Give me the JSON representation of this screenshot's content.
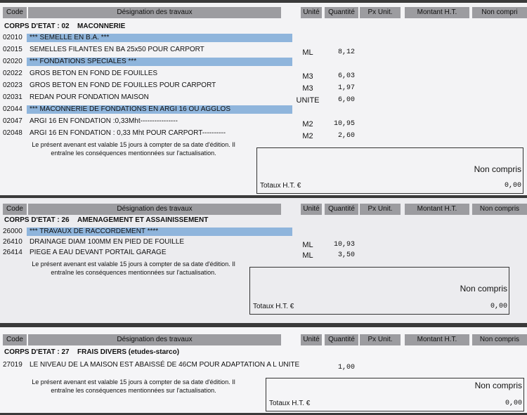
{
  "sections": [
    {
      "headers": [
        "Code",
        "Désignation des travaux",
        "Unité",
        "Quantité",
        "Px Unit.",
        "Montant H.T.",
        "Non compri"
      ],
      "corps_label": "CORPS D'ETAT : 02",
      "corps_title": "MACONNERIE",
      "rows": [
        {
          "code": "02010",
          "designation": "*** SEMELLE EN B.A. ***",
          "highlight": true
        },
        {
          "code": "02015",
          "designation": "SEMELLES FILANTES EN BA 25x50 POUR CARPORT",
          "unit": "ML",
          "qty": "8,12"
        },
        {
          "code": "02020",
          "designation": "*** FONDATIONS SPECIALES ***",
          "highlight": true
        },
        {
          "code": "02022",
          "designation": "GROS BETON EN FOND DE FOUILLES",
          "unit": "M3",
          "qty": "6,03"
        },
        {
          "code": "02023",
          "designation": "GROS BETON EN FOND DE FOUILLES POUR CARPORT",
          "unit": "M3",
          "qty": "1,97"
        },
        {
          "code": "02031",
          "designation": "REDAN POUR FONDATION MAISON",
          "unit": "UNITE",
          "qty": "6,00"
        },
        {
          "code": "02044",
          "designation": "*** MACONNERIE DE FONDATIONS EN ARGI 16 OU AGGLOS",
          "highlight": true
        },
        {
          "code": "02047",
          "designation": "ARGI 16 EN FONDATION :0,33Mht----------------",
          "unit": "M2",
          "qty": "10,95"
        },
        {
          "code": "02048",
          "designation": "ARGI 16 EN FONDATION : 0,33 Mht POUR CARPORT----------",
          "unit": "M2",
          "qty": "2,60"
        }
      ],
      "note": [
        "Le présent avenant est valable 15 jours à compter de sa date d'édition. Il",
        "entraîne les conséquences mentionnées sur l'actualisation."
      ],
      "totals_label": "Totaux H.T. €",
      "non_compris": "Non compris",
      "total": "0,00"
    },
    {
      "headers": [
        "Code",
        "Désignation des travaux",
        "Unité",
        "Quantité",
        "Px Unit.",
        "Montant H.T.",
        "Non compris"
      ],
      "corps_label": "CORPS D'ETAT : 26",
      "corps_title": "AMENAGEMENT ET ASSAINISSEMENT",
      "rows": [
        {
          "code": "26000",
          "designation": "*** TRAVAUX DE RACCORDEMENT ****",
          "highlight": true
        },
        {
          "code": "26410",
          "designation": "DRAINAGE DIAM 100MM EN PIED DE FOUILLE",
          "unit": "ML",
          "qty": "10,93"
        },
        {
          "code": "26414",
          "designation": "PIEGE A EAU DEVANT PORTAIL GARAGE",
          "unit": "ML",
          "qty": "3,50"
        }
      ],
      "note": [
        "Le présent avenant est valable 15 jours à compter de sa date d'édition. Il",
        "entraîne les conséquences mentionnées sur l'actualisation."
      ],
      "totals_label": "Totaux H.T. €",
      "non_compris": "Non compris",
      "total": "0,00"
    },
    {
      "headers": [
        "Code",
        "Désignation des travaux",
        "Unité",
        "Quantité",
        "Px Unit.",
        "Montant H.T.",
        "Non compris"
      ],
      "corps_label": "CORPS D'ETAT : 27",
      "corps_title": "FRAIS DIVERS (etudes-starco)",
      "rows": [
        {
          "code": "27019",
          "designation": "LE NIVEAU DE LA MAISON EST ABAISSÉ DE 46CM POUR ADAPTATION A L UNITE",
          "qty": "1,00"
        }
      ],
      "note": [
        "Le présent avenant est valable 15 jours à compter de sa date d'édition. Il",
        "entraîne les conséquences mentionnées sur l'actualisation."
      ],
      "totals_label": "Totaux H.T. €",
      "non_compris": "Non compris",
      "total": "0,00"
    }
  ]
}
